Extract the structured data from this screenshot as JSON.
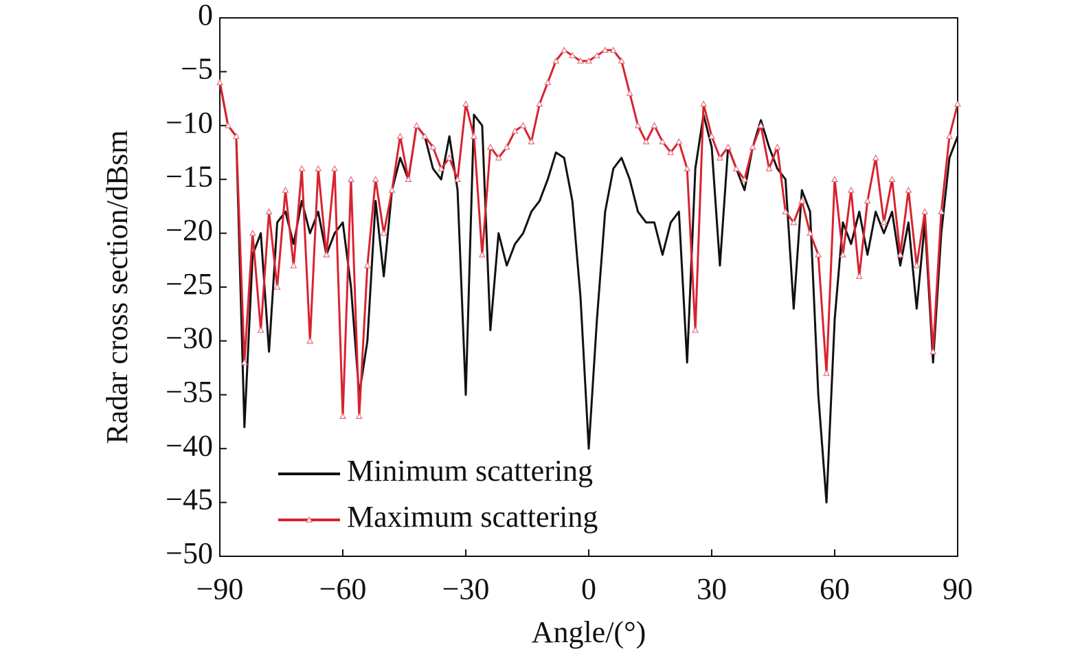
{
  "chart_data": {
    "type": "line",
    "x_label": "Angle/(°)",
    "y_label": "Radar cross section/dBsm",
    "xlim": [
      -90,
      90
    ],
    "ylim": [
      -50,
      0
    ],
    "xticks": [
      {
        "value": -90,
        "label": "−90"
      },
      {
        "value": -60,
        "label": "−60"
      },
      {
        "value": -30,
        "label": "−30"
      },
      0,
      30,
      60,
      90
    ],
    "yticks": [
      0,
      {
        "value": -5,
        "label": "−5"
      },
      {
        "value": -10,
        "label": "−10"
      },
      {
        "value": -15,
        "label": "−15"
      },
      {
        "value": -20,
        "label": "−20"
      },
      {
        "value": -25,
        "label": "−25"
      },
      {
        "value": -30,
        "label": "−30"
      },
      {
        "value": -35,
        "label": "−35"
      },
      {
        "value": -40,
        "label": "−40"
      },
      {
        "value": -45,
        "label": "−45"
      },
      {
        "value": -50,
        "label": "−50"
      }
    ],
    "grid": false,
    "legend": "lower left",
    "x": [
      -90,
      -88,
      -86,
      -84,
      -82,
      -80,
      -78,
      -76,
      -74,
      -72,
      -70,
      -68,
      -66,
      -64,
      -62,
      -60,
      -58,
      -56,
      -54,
      -52,
      -50,
      -48,
      -46,
      -44,
      -42,
      -40,
      -38,
      -36,
      -34,
      -32,
      -30,
      -28,
      -26,
      -24,
      -22,
      -20,
      -18,
      -16,
      -14,
      -12,
      -10,
      -8,
      -6,
      -4,
      -2,
      0,
      2,
      4,
      6,
      8,
      10,
      12,
      14,
      16,
      18,
      20,
      22,
      24,
      26,
      28,
      30,
      32,
      34,
      36,
      38,
      40,
      42,
      44,
      46,
      48,
      50,
      52,
      54,
      56,
      58,
      60,
      62,
      64,
      66,
      68,
      70,
      72,
      74,
      76,
      78,
      80,
      82,
      84,
      86,
      88,
      90
    ],
    "series": [
      {
        "name": "Minimum scattering",
        "color": "#111111",
        "marker": "none",
        "values": [
          -6,
          -10,
          -11,
          -38,
          -22,
          -20,
          -31,
          -19,
          -18,
          -21,
          -17,
          -20,
          -18,
          -22,
          -20,
          -19,
          -25,
          -35,
          -30,
          -17,
          -24,
          -16,
          -13,
          -15,
          -10,
          -11,
          -14,
          -15,
          -11,
          -16,
          -35,
          -9,
          -10,
          -29,
          -20,
          -23,
          -21,
          -20,
          -18,
          -17,
          -15,
          -12.5,
          -13,
          -17,
          -26,
          -40,
          -28,
          -18,
          -14,
          -13,
          -15,
          -18,
          -19,
          -19,
          -22,
          -19,
          -18,
          -32,
          -14,
          -9,
          -12,
          -23,
          -12,
          -14,
          -16,
          -12,
          -9.5,
          -12,
          -14,
          -15,
          -27,
          -16,
          -18,
          -35,
          -45,
          -28,
          -19,
          -21,
          -18,
          -22,
          -18,
          -20,
          -18,
          -23,
          -19,
          -27,
          -19,
          -32,
          -20,
          -13,
          -11
        ]
      },
      {
        "name": "Maximum scattering",
        "color": "#d8232f",
        "marker": "triangle",
        "values": [
          -6,
          -10,
          -11,
          -32,
          -20,
          -29,
          -18,
          -25,
          -16,
          -23,
          -14,
          -30,
          -14,
          -22,
          -14,
          -37,
          -15,
          -37,
          -23,
          -15,
          -20,
          -16,
          -11,
          -15,
          -10,
          -11,
          -12,
          -14,
          -13,
          -15,
          -8,
          -11,
          -22,
          -12,
          -13,
          -12,
          -10.5,
          -10,
          -11.5,
          -8,
          -6,
          -4,
          -3,
          -3.5,
          -4,
          -4,
          -3.5,
          -3,
          -3,
          -4,
          -7,
          -10,
          -11.5,
          -10,
          -11.5,
          -12.5,
          -11.5,
          -14,
          -29,
          -8,
          -11,
          -13,
          -12,
          -14,
          -15,
          -12,
          -10,
          -14,
          -12,
          -18,
          -19,
          -17,
          -20,
          -22,
          -33,
          -15,
          -22,
          -16,
          -24,
          -17,
          -13,
          -19,
          -15,
          -22,
          -16,
          -23,
          -18,
          -31,
          -18,
          -11,
          -8
        ]
      }
    ]
  }
}
